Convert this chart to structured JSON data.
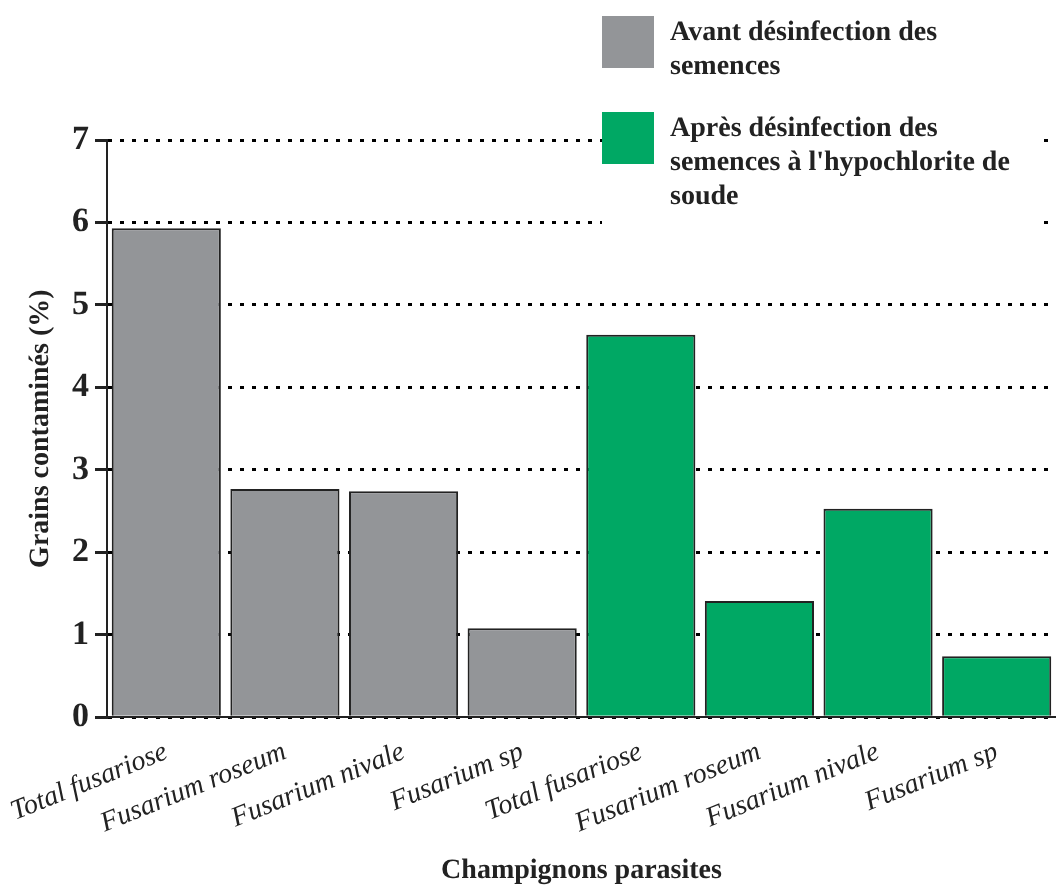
{
  "chart_data": {
    "type": "bar",
    "xlabel": "Champignons parasites",
    "ylabel": "Grains contaminés (%)",
    "categories": [
      "Total fusariose",
      "Fusarium roseum",
      "Fusarium nivale",
      "Fusarium sp",
      "Total fusariose",
      "Fusarium roseum",
      "Fusarium nivale",
      "Fusarium sp"
    ],
    "series": [
      {
        "name": "Avant désinfection des semences",
        "color": "#939598",
        "values": [
          5.93,
          2.77,
          2.74,
          1.08,
          null,
          null,
          null,
          null
        ]
      },
      {
        "name": "Après désinfection des semences à l'hypochlorite de soude",
        "color": "#00a864",
        "values": [
          null,
          null,
          null,
          null,
          4.64,
          1.41,
          2.53,
          0.74
        ]
      }
    ],
    "ylim": [
      0,
      7
    ],
    "yticks": [
      0,
      1,
      2,
      3,
      4,
      5,
      6,
      7
    ],
    "grid": "y",
    "legend": "top right"
  }
}
